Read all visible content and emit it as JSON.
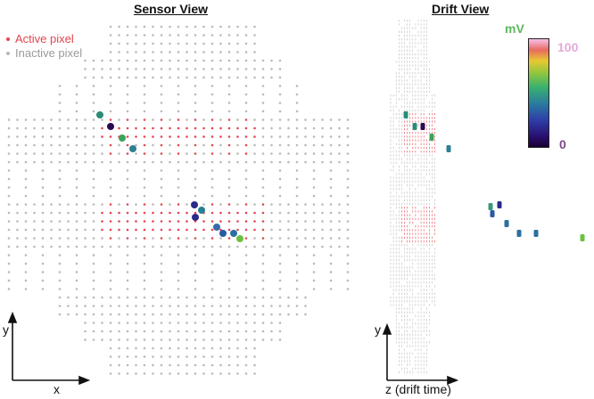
{
  "sensor_view": {
    "title": "Sensor View",
    "legend": {
      "active_label": "Active pixel",
      "inactive_label": "Inactive pixel",
      "active_color": "#e3454f",
      "inactive_color": "#b9b9b9"
    },
    "axis": {
      "vertical": "y",
      "horizontal": "x"
    }
  },
  "drift_view": {
    "title": "Drift View",
    "axis": {
      "vertical": "y",
      "horizontal": "z (drift time)"
    }
  },
  "colorbar": {
    "unit": "mV",
    "max_label": "100",
    "min_label": "0",
    "unit_color": "#5cb85c",
    "max_color": "#f0a8d8",
    "min_color": "#7a4a8a"
  }
}
